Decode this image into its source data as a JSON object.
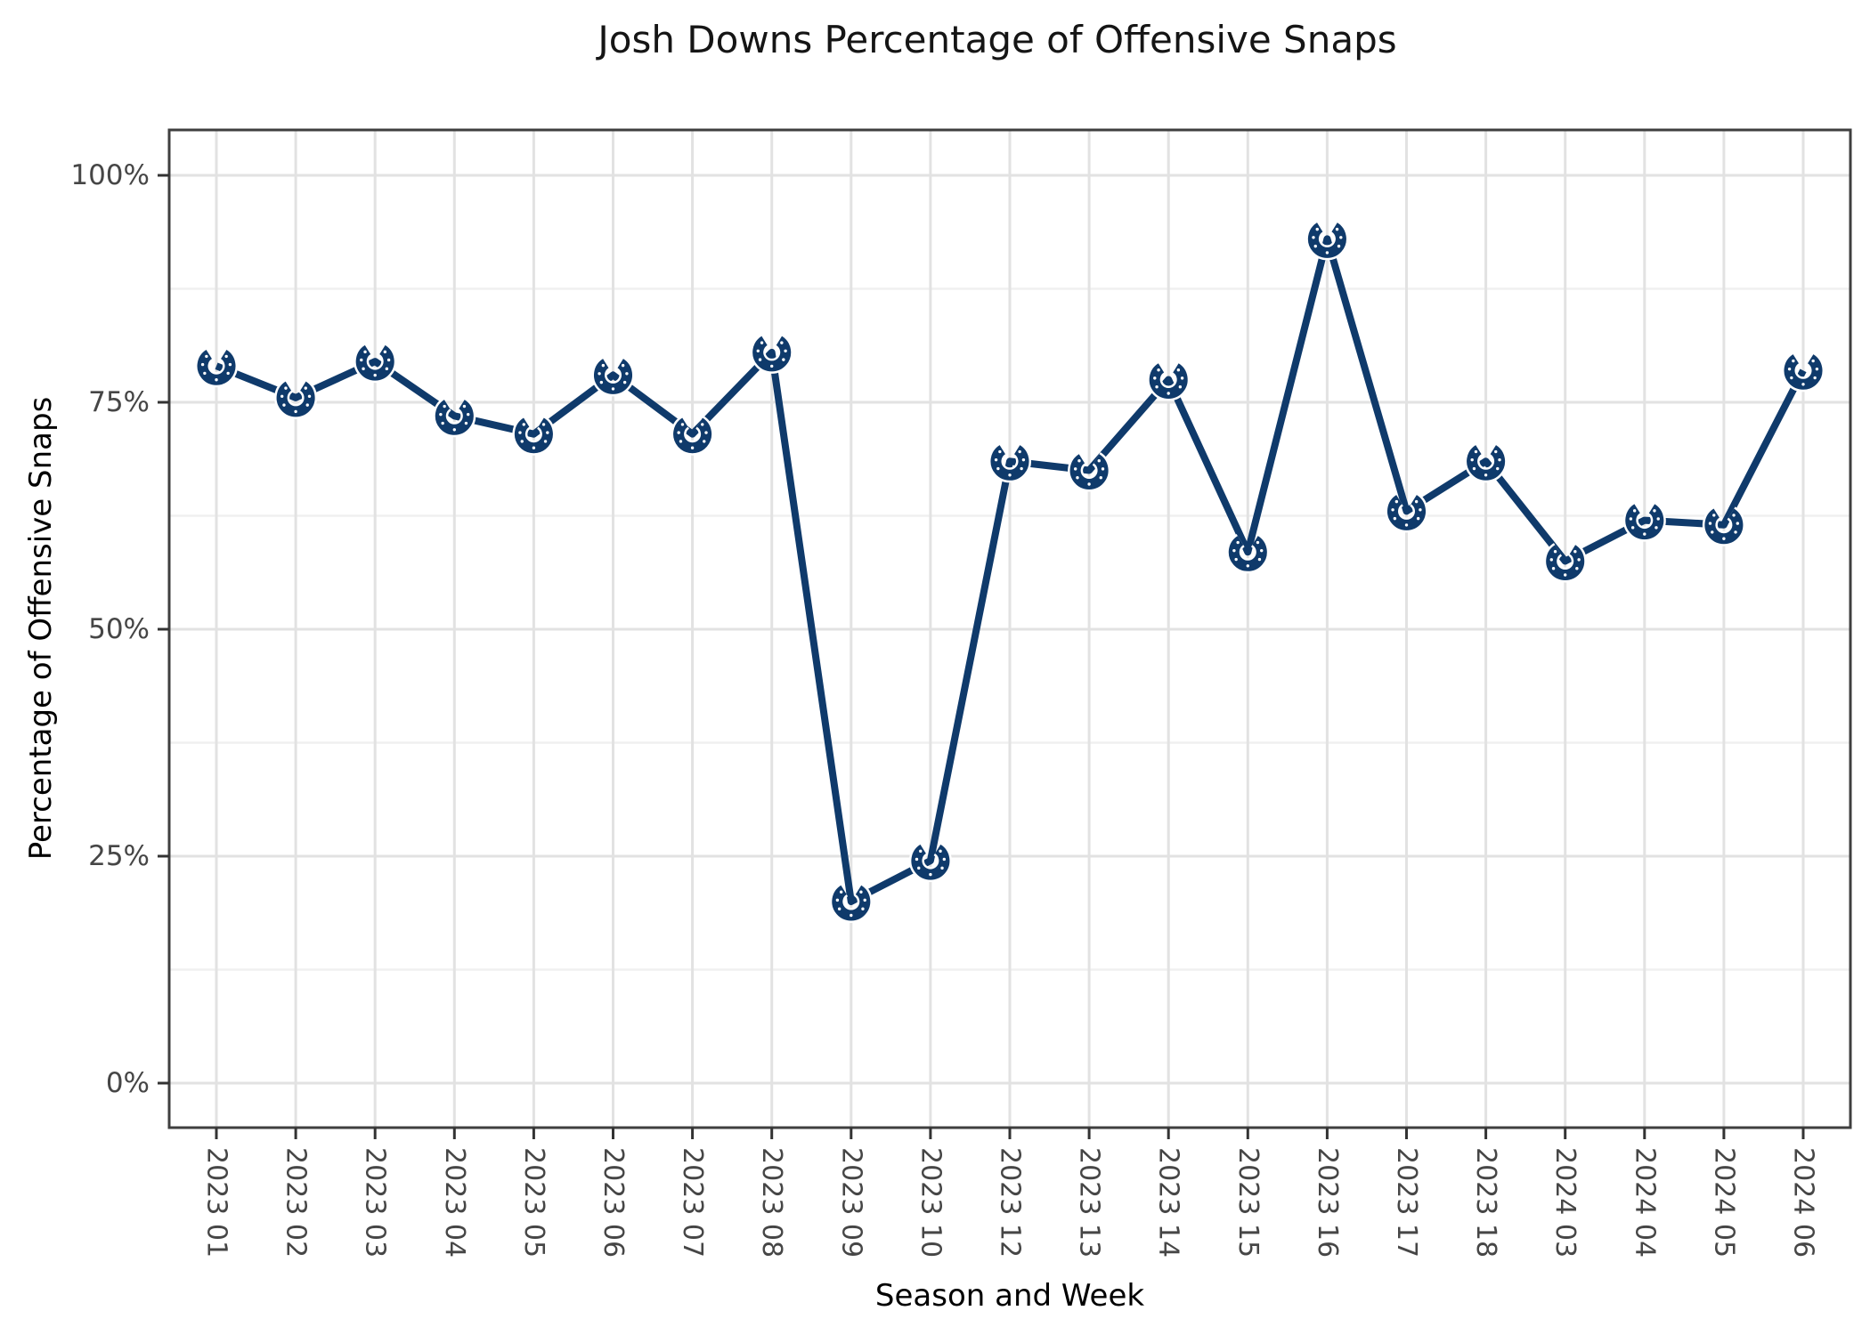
{
  "chart_data": {
    "type": "line",
    "title": "Josh Downs Percentage of Offensive Snaps",
    "xlabel": "Season and Week",
    "ylabel": "Percentage of Offensive Snaps",
    "categories": [
      "2023 01",
      "2023 02",
      "2023 03",
      "2023 04",
      "2023 05",
      "2023 06",
      "2023 07",
      "2023 08",
      "2023 09",
      "2023 10",
      "2023 12",
      "2023 13",
      "2023 14",
      "2023 15",
      "2023 16",
      "2023 17",
      "2023 18",
      "2024 03",
      "2024 04",
      "2024 05",
      "2024 06"
    ],
    "values": [
      79,
      75.5,
      79.5,
      73.5,
      71.5,
      78,
      71.5,
      80.5,
      20,
      24.5,
      68.5,
      67.5,
      77.5,
      58.5,
      93,
      63,
      68.5,
      57.5,
      62,
      61.5,
      78.5
    ],
    "unit": "%",
    "ylim": [
      0,
      100
    ],
    "yticks": [
      0,
      25,
      50,
      75,
      100
    ],
    "ytick_labels": [
      "0%",
      "25%",
      "50%",
      "75%",
      "100%"
    ],
    "grid": {
      "horizontal": "major every 25% with minor every 12.5%",
      "vertical": "major at every category"
    },
    "legend": "none",
    "marker": "colts-horseshoe-logo",
    "colors": {
      "line": "#0f3a6b",
      "marker": "#0f3a6b",
      "grid_major": "#e2e2e2",
      "grid_minor": "#f0f0f0",
      "panel_border": "#3f3f3f",
      "tick_mark": "#333333",
      "tick_label": "#464646",
      "title_text": "#151515"
    }
  }
}
